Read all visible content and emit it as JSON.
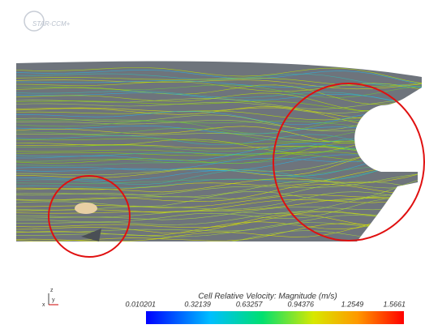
{
  "logo": "STAR-CCM+",
  "triad": {
    "z": "z",
    "x": "x",
    "y": "y"
  },
  "colorbar": {
    "title": "Cell Relative Velocity: Magnitude (m/s)",
    "ticks": [
      0.010201,
      0.32139,
      0.63257,
      0.94376,
      1.2549,
      1.5661
    ]
  }
}
